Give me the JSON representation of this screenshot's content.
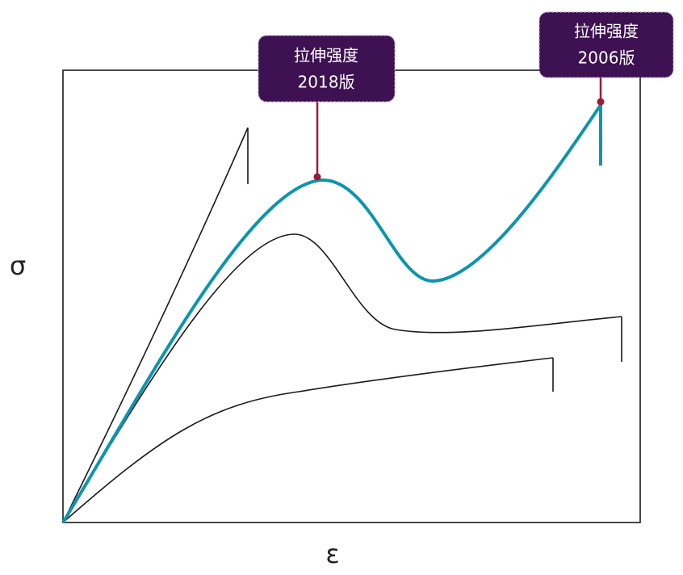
{
  "axes": {
    "y_label": "σ",
    "x_label": "ε"
  },
  "callouts": [
    {
      "title": "拉伸强度",
      "subtitle": "2018版"
    },
    {
      "title": "拉伸强度",
      "subtitle": "2006版"
    }
  ]
}
